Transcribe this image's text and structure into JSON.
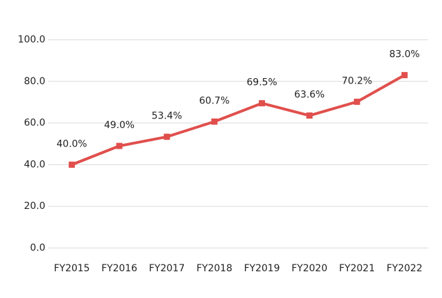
{
  "chart_data": {
    "type": "line",
    "categories": [
      "FY2015",
      "FY2016",
      "FY2017",
      "FY2018",
      "FY2019",
      "FY2020",
      "FY2021",
      "FY2022"
    ],
    "series": [
      {
        "color": "#e04f4c",
        "values": [
          40.0,
          49.0,
          53.4,
          60.7,
          69.5,
          63.6,
          70.2,
          83.0
        ],
        "value_labels": [
          "40.0%",
          "49.0%",
          "53.4%",
          "60.7%",
          "69.5%",
          "63.6%",
          "70.2%",
          "83.0%"
        ]
      }
    ],
    "ylim": [
      0,
      100
    ],
    "yticks": [
      {
        "value": 0,
        "label": "0.0"
      },
      {
        "value": 20,
        "label": "20.0"
      },
      {
        "value": 40,
        "label": "40.0"
      },
      {
        "value": 60,
        "label": "60.0"
      },
      {
        "value": 80,
        "label": "80.0"
      },
      {
        "value": 100,
        "label": "100.0"
      }
    ],
    "grid": true
  }
}
